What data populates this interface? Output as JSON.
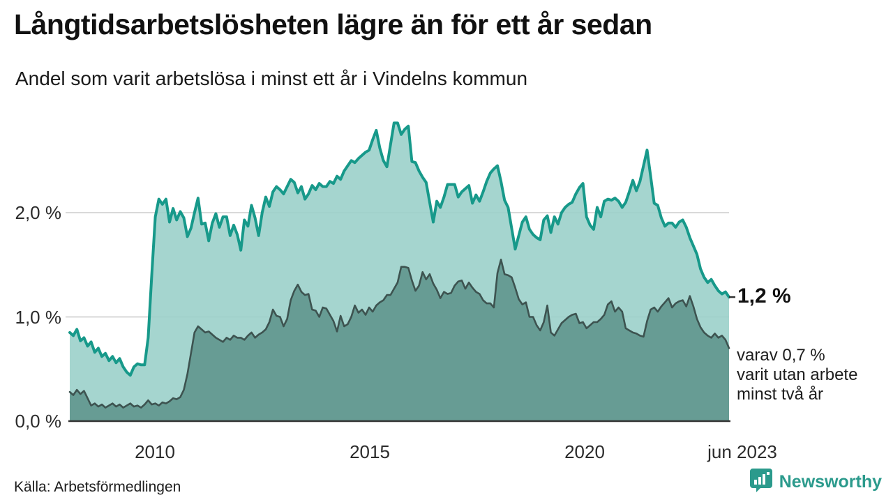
{
  "header": {
    "title": "Långtidsarbetslösheten lägre än för ett år sedan",
    "subtitle": "Andel som varit arbetslösa i minst ett år i Vindelns kommun"
  },
  "annotations": {
    "latest_value": "1,2 %",
    "secondary": "varav 0,7 %\nvarit utan arbete\nminst två år"
  },
  "footer": {
    "source": "Källa: Arbetsförmedlingen",
    "brand": "Newsworthy"
  },
  "colors": {
    "series1_line": "#17998a",
    "series1_fill": "#98cfc8",
    "series2_line": "#3d5350",
    "series2_fill": "#5f948c",
    "gridline": "#d9d9d9",
    "axis_line": "#333333",
    "brand_teal": "#2b9a8c"
  },
  "chart_data": {
    "type": "area",
    "title": "Långtidsarbetslösheten lägre än för ett år sedan",
    "subtitle": "Andel som varit arbetslösa i minst ett år i Vindelns kommun",
    "unit": "%",
    "frequency": "monthly",
    "x_start": "2008-01",
    "x_end": "2023-06",
    "ylim": [
      0,
      3.0
    ],
    "grid": "horizontal",
    "legend_position": "none",
    "yticks": [
      {
        "label": "0,0 %",
        "value": 0
      },
      {
        "label": "1,0 %",
        "value": 1
      },
      {
        "label": "2,0 %",
        "value": 2
      }
    ],
    "xticks": [
      {
        "label": "2010",
        "month_index": 24
      },
      {
        "label": "2015",
        "month_index": 84
      },
      {
        "label": "2020",
        "month_index": 144
      },
      {
        "label": "jun 2023",
        "month_index": 185
      }
    ],
    "series": [
      {
        "name": "Andel arbetslösa minst ett år",
        "line_color": "#17998a",
        "fill_color": "#98cfc8",
        "last_value_label": "1,2 %",
        "values": [
          0.85,
          0.82,
          0.88,
          0.77,
          0.8,
          0.72,
          0.76,
          0.66,
          0.7,
          0.62,
          0.65,
          0.58,
          0.62,
          0.56,
          0.6,
          0.52,
          0.47,
          0.44,
          0.52,
          0.55,
          0.54,
          0.54,
          0.8,
          1.4,
          1.96,
          2.13,
          2.08,
          2.13,
          1.91,
          2.04,
          1.93,
          2.01,
          1.95,
          1.77,
          1.85,
          2.0,
          2.14,
          1.89,
          1.9,
          1.73,
          1.9,
          1.99,
          1.86,
          1.96,
          1.96,
          1.78,
          1.88,
          1.79,
          1.64,
          1.93,
          1.87,
          2.07,
          1.95,
          1.78,
          2.0,
          2.15,
          2.06,
          2.2,
          2.25,
          2.22,
          2.18,
          2.25,
          2.32,
          2.29,
          2.19,
          2.25,
          2.13,
          2.18,
          2.26,
          2.22,
          2.28,
          2.25,
          2.25,
          2.3,
          2.28,
          2.35,
          2.32,
          2.4,
          2.45,
          2.5,
          2.48,
          2.52,
          2.55,
          2.58,
          2.6,
          2.7,
          2.79,
          2.62,
          2.5,
          2.44,
          2.65,
          2.86,
          2.86,
          2.75,
          2.8,
          2.83,
          2.49,
          2.48,
          2.4,
          2.34,
          2.29,
          2.1,
          1.91,
          2.11,
          2.05,
          2.15,
          2.27,
          2.27,
          2.27,
          2.15,
          2.2,
          2.23,
          2.26,
          2.09,
          2.17,
          2.11,
          2.2,
          2.3,
          2.38,
          2.42,
          2.45,
          2.3,
          2.12,
          2.05,
          1.85,
          1.65,
          1.78,
          1.91,
          1.96,
          1.84,
          1.79,
          1.76,
          1.74,
          1.93,
          1.97,
          1.81,
          1.96,
          1.89,
          2.0,
          2.05,
          2.08,
          2.1,
          2.18,
          2.24,
          2.28,
          1.96,
          1.88,
          1.84,
          2.05,
          1.96,
          2.11,
          2.13,
          2.12,
          2.14,
          2.11,
          2.05,
          2.1,
          2.2,
          2.31,
          2.21,
          2.3,
          2.45,
          2.6,
          2.35,
          2.09,
          2.07,
          1.95,
          1.87,
          1.9,
          1.9,
          1.86,
          1.91,
          1.93,
          1.86,
          1.76,
          1.68,
          1.6,
          1.46,
          1.38,
          1.33,
          1.36,
          1.3,
          1.25,
          1.22,
          1.24,
          1.19
        ]
      },
      {
        "name": "varav utan arbete minst två år",
        "line_color": "#3d5350",
        "fill_color": "#5f948c",
        "last_value_label": "0,7 %",
        "values": [
          0.28,
          0.25,
          0.3,
          0.26,
          0.29,
          0.22,
          0.15,
          0.17,
          0.14,
          0.16,
          0.13,
          0.15,
          0.17,
          0.14,
          0.16,
          0.13,
          0.15,
          0.17,
          0.14,
          0.15,
          0.13,
          0.16,
          0.2,
          0.16,
          0.17,
          0.15,
          0.18,
          0.17,
          0.19,
          0.22,
          0.21,
          0.23,
          0.3,
          0.45,
          0.65,
          0.85,
          0.91,
          0.88,
          0.85,
          0.86,
          0.83,
          0.8,
          0.78,
          0.76,
          0.8,
          0.78,
          0.82,
          0.8,
          0.8,
          0.78,
          0.82,
          0.85,
          0.8,
          0.83,
          0.85,
          0.88,
          0.95,
          1.07,
          1.01,
          1.0,
          0.91,
          0.98,
          1.16,
          1.25,
          1.31,
          1.24,
          1.21,
          1.22,
          1.07,
          1.06,
          1.0,
          1.09,
          1.08,
          1.02,
          0.96,
          0.86,
          1.01,
          0.91,
          0.93,
          1.0,
          1.11,
          1.04,
          1.07,
          1.02,
          1.09,
          1.05,
          1.11,
          1.14,
          1.16,
          1.21,
          1.21,
          1.27,
          1.33,
          1.48,
          1.48,
          1.47,
          1.35,
          1.25,
          1.3,
          1.43,
          1.36,
          1.41,
          1.32,
          1.26,
          1.18,
          1.24,
          1.22,
          1.23,
          1.3,
          1.34,
          1.35,
          1.27,
          1.33,
          1.28,
          1.24,
          1.22,
          1.16,
          1.13,
          1.13,
          1.09,
          1.42,
          1.55,
          1.41,
          1.4,
          1.38,
          1.28,
          1.17,
          1.12,
          1.14,
          1.0,
          1.0,
          0.92,
          0.87,
          0.95,
          1.11,
          0.85,
          0.82,
          0.88,
          0.94,
          0.97,
          1.0,
          1.02,
          1.03,
          0.94,
          0.95,
          0.89,
          0.92,
          0.95,
          0.95,
          0.98,
          1.02,
          1.12,
          1.15,
          1.05,
          1.09,
          1.05,
          0.89,
          0.87,
          0.85,
          0.84,
          0.82,
          0.81,
          0.96,
          1.07,
          1.09,
          1.05,
          1.1,
          1.14,
          1.18,
          1.09,
          1.13,
          1.15,
          1.16,
          1.1,
          1.2,
          1.1,
          0.98,
          0.9,
          0.85,
          0.82,
          0.8,
          0.84,
          0.8,
          0.82,
          0.78,
          0.7
        ]
      }
    ]
  }
}
